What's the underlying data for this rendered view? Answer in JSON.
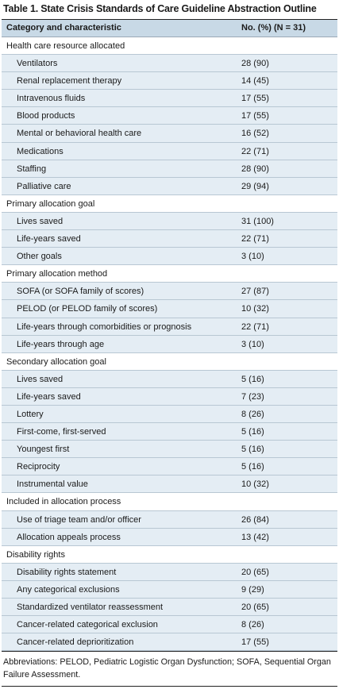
{
  "table": {
    "title": "Table 1. State Crisis Standards of Care Guideline Abstraction Outline",
    "header": {
      "category": "Category and characteristic",
      "count": "No. (%) (N = 31)"
    },
    "sections": [
      {
        "label": "Health care resource allocated",
        "items": [
          {
            "label": "Ventilators",
            "value": "28 (90)"
          },
          {
            "label": "Renal replacement therapy",
            "value": "14 (45)"
          },
          {
            "label": "Intravenous fluids",
            "value": "17 (55)"
          },
          {
            "label": "Blood products",
            "value": "17 (55)"
          },
          {
            "label": "Mental or behavioral health care",
            "value": "16 (52)"
          },
          {
            "label": "Medications",
            "value": "22 (71)"
          },
          {
            "label": "Staffing",
            "value": "28 (90)"
          },
          {
            "label": "Palliative care",
            "value": "29 (94)"
          }
        ]
      },
      {
        "label": "Primary allocation goal",
        "items": [
          {
            "label": "Lives saved",
            "value": "31 (100)"
          },
          {
            "label": "Life-years saved",
            "value": "22 (71)"
          },
          {
            "label": "Other goals",
            "value": "3 (10)"
          }
        ]
      },
      {
        "label": "Primary allocation method",
        "items": [
          {
            "label": "SOFA (or SOFA family of scores)",
            "value": "27 (87)"
          },
          {
            "label": "PELOD (or PELOD family of scores)",
            "value": "10 (32)"
          },
          {
            "label": "Life-years through comorbidities or prognosis",
            "value": "22 (71)"
          },
          {
            "label": "Life-years through age",
            "value": "3 (10)"
          }
        ]
      },
      {
        "label": "Secondary allocation goal",
        "items": [
          {
            "label": "Lives saved",
            "value": "5 (16)"
          },
          {
            "label": "Life-years saved",
            "value": "7 (23)"
          },
          {
            "label": "Lottery",
            "value": "8 (26)"
          },
          {
            "label": "First-come, first-served",
            "value": "5 (16)"
          },
          {
            "label": "Youngest first",
            "value": "5 (16)"
          },
          {
            "label": "Reciprocity",
            "value": "5 (16)"
          },
          {
            "label": "Instrumental value",
            "value": "10 (32)"
          }
        ]
      },
      {
        "label": "Included in allocation process",
        "items": [
          {
            "label": "Use of triage team and/or officer",
            "value": "26 (84)"
          },
          {
            "label": "Allocation appeals process",
            "value": "13 (42)"
          }
        ]
      },
      {
        "label": "Disability rights",
        "items": [
          {
            "label": "Disability rights statement",
            "value": "20 (65)"
          },
          {
            "label": "Any categorical exclusions",
            "value": "9 (29)"
          },
          {
            "label": "Standardized ventilator reassessment",
            "value": "20 (65)"
          },
          {
            "label": "Cancer-related categorical exclusion",
            "value": "8 (26)"
          },
          {
            "label": "Cancer-related deprioritization",
            "value": "17 (55)"
          }
        ]
      }
    ],
    "footnote": "Abbreviations: PELOD, Pediatric Logistic Organ Dysfunction; SOFA, Sequential Organ Failure Assessment."
  }
}
